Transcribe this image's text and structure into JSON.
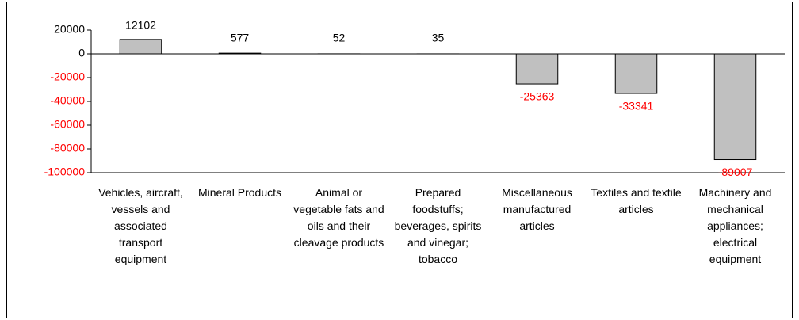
{
  "chart_data": {
    "type": "bar",
    "categories": [
      "Vehicles, aircraft, vessels and associated transport equipment",
      "Mineral Products",
      "Animal or vegetable fats and oils and their cleavage products",
      "Prepared foodstuffs; beverages, spirits and vinegar; tobacco",
      "Miscellaneous manufactured articles",
      "Textiles and textile articles",
      "Machinery and mechanical appliances; electrical equipment"
    ],
    "values": [
      12102,
      577,
      52,
      35,
      -25363,
      -33341,
      -89007
    ],
    "color": "#c0c0c0",
    "negative_label_color": "#ff0000",
    "ylim": [
      -100000,
      20000
    ],
    "yticks": [
      -100000,
      -80000,
      -60000,
      -40000,
      -20000,
      0,
      20000
    ]
  }
}
